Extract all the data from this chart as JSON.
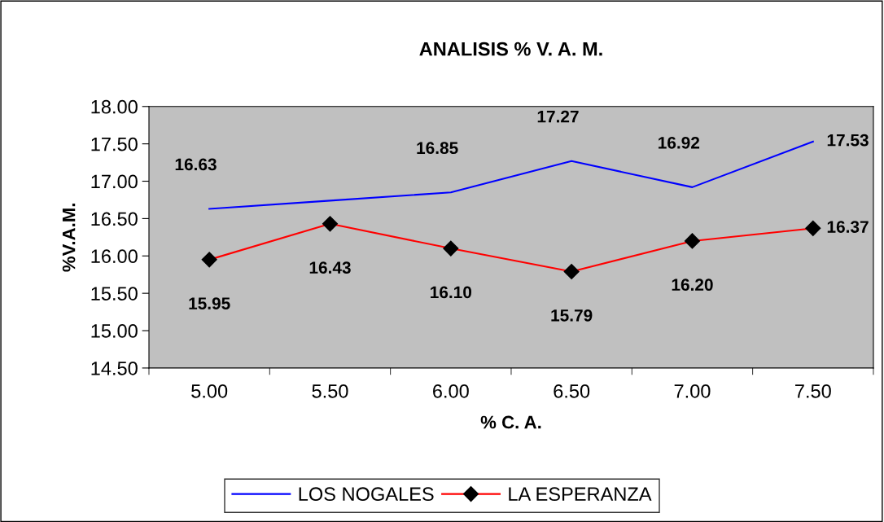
{
  "chart_data": {
    "type": "line",
    "title": "ANALISIS % V. A. M.",
    "xlabel": "% C. A.",
    "ylabel": "%V.A.M.",
    "categories": [
      "5.00",
      "5.50",
      "6.00",
      "6.50",
      "7.00",
      "7.50"
    ],
    "series": [
      {
        "name": "LOS NOGALES",
        "color": "#0000ff",
        "marker": "none",
        "values": [
          16.63,
          16.74,
          16.85,
          17.27,
          16.92,
          17.53
        ],
        "value_labels": [
          "16.63",
          null,
          "16.85",
          "17.27",
          "16.92",
          "17.53"
        ]
      },
      {
        "name": "LA ESPERANZA",
        "color": "#ff0000",
        "marker": "diamond",
        "values": [
          15.95,
          16.43,
          16.1,
          15.79,
          16.2,
          16.37
        ],
        "value_labels": [
          "15.95",
          "16.43",
          "16.10",
          "15.79",
          "16.20",
          "16.37"
        ]
      }
    ],
    "ylim": [
      14.5,
      18.0
    ],
    "yticks": [
      {
        "value": 14.5,
        "label": "14.50"
      },
      {
        "value": 15.0,
        "label": "15.00"
      },
      {
        "value": 15.5,
        "label": "15.50"
      },
      {
        "value": 16.0,
        "label": "16.00"
      },
      {
        "value": 16.5,
        "label": "16.50"
      },
      {
        "value": 17.0,
        "label": "17.00"
      },
      {
        "value": 17.5,
        "label": "17.50"
      },
      {
        "value": 18.0,
        "label": "18.00"
      }
    ],
    "grid": false,
    "legend": "bottom",
    "line_style": "solid"
  }
}
